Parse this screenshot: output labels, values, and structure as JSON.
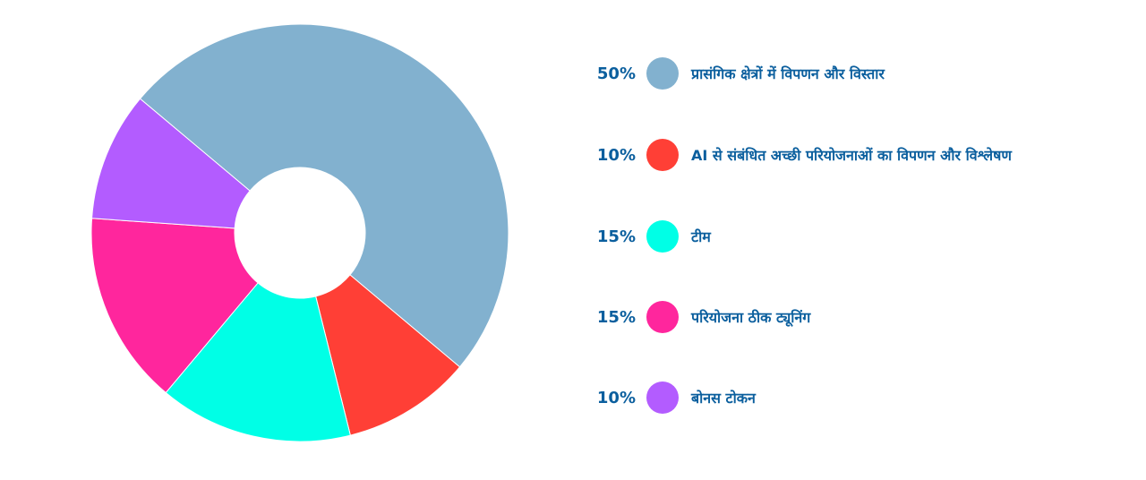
{
  "chart_data": {
    "type": "pie",
    "title": "",
    "categories": [
      "प्रासंगिक क्षेत्रों में विपणन और विस्तार",
      "AI से संबंधित अच्छी परियोजनाओं का विपणन और विश्लेषण",
      "टीम",
      "परियोजना ठीक ट्यूनिंग",
      "बोनस टोकन"
    ],
    "values": [
      50,
      10,
      15,
      15,
      10
    ],
    "value_labels": [
      "50%",
      "10%",
      "15%",
      "15%",
      "10%"
    ],
    "colors": [
      "#82b1cf",
      "#ff3f36",
      "#00ffe6",
      "#ff269d",
      "#b35cff"
    ],
    "legend_placement": "right",
    "donut": true
  }
}
